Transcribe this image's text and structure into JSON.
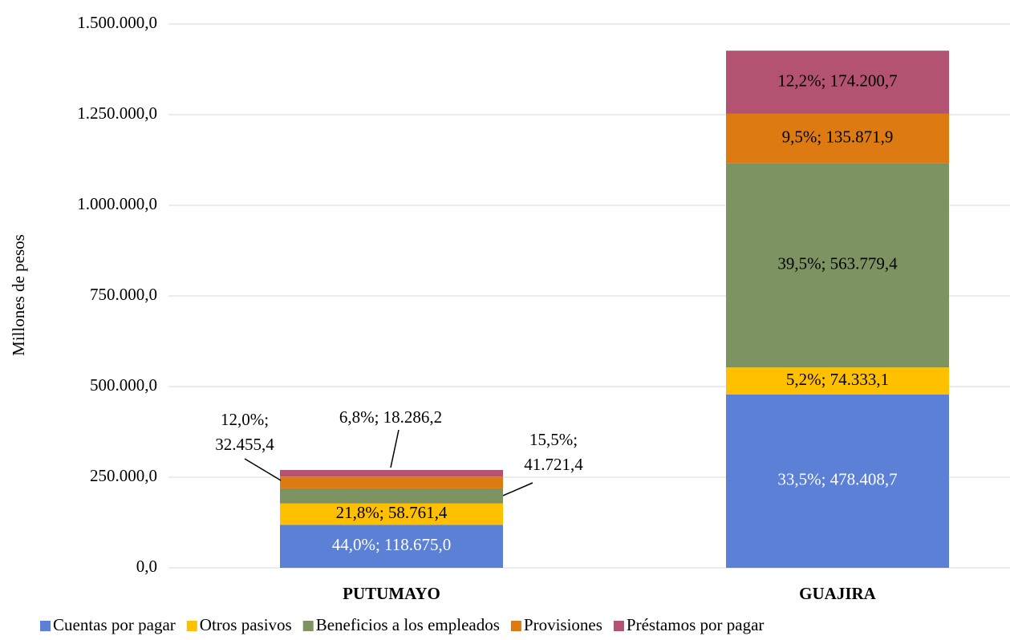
{
  "chart_data": {
    "type": "stacked_bar",
    "y_label": "Millones  de pesos",
    "categories": [
      "PUTUMAYO",
      "GUAJIRA"
    ],
    "series": [
      {
        "name": "Cuentas por pagar",
        "color": "#5b80d6",
        "values": [
          118675.0,
          478408.7
        ],
        "value_labels": [
          "44,0%; 118.675,0",
          "33,5%; 478.408,7"
        ]
      },
      {
        "name": "Otros pasivos",
        "color": "#ffc000",
        "values": [
          58761.4,
          74333.1
        ],
        "value_labels": [
          "21,8%; 58.761,4",
          "5,2%; 74.333,1"
        ]
      },
      {
        "name": "Beneficios a los empleados",
        "color": "#7d9462",
        "values": [
          41721.4,
          563779.4
        ],
        "value_labels": [
          "15,5%; 41.721,4",
          "39,5%; 563.779,4"
        ]
      },
      {
        "name": "Provisiones",
        "color": "#dd7a12",
        "values": [
          32455.4,
          135871.9
        ],
        "value_labels": [
          "12,0%; 32.455,4",
          "9,5%; 135.871,9"
        ]
      },
      {
        "name": "Préstamos por pagar",
        "color": "#b45272",
        "values": [
          18286.2,
          174200.7
        ],
        "value_labels": [
          "6,8%; 18.286,2",
          "12,2%; 174.200,7"
        ]
      }
    ],
    "ylim": [
      0,
      1500000
    ],
    "yticks": [
      {
        "value": 0,
        "label": "0,0"
      },
      {
        "value": 250000,
        "label": "250.000,0"
      },
      {
        "value": 500000,
        "label": "500.000,0"
      },
      {
        "value": 750000,
        "label": "750.000,0"
      },
      {
        "value": 1000000,
        "label": "1.000.000,0"
      },
      {
        "value": 1250000,
        "label": "1.250.000,0"
      },
      {
        "value": 1500000,
        "label": "1.500.000,0"
      }
    ],
    "grid": true,
    "legend": "bottom"
  }
}
